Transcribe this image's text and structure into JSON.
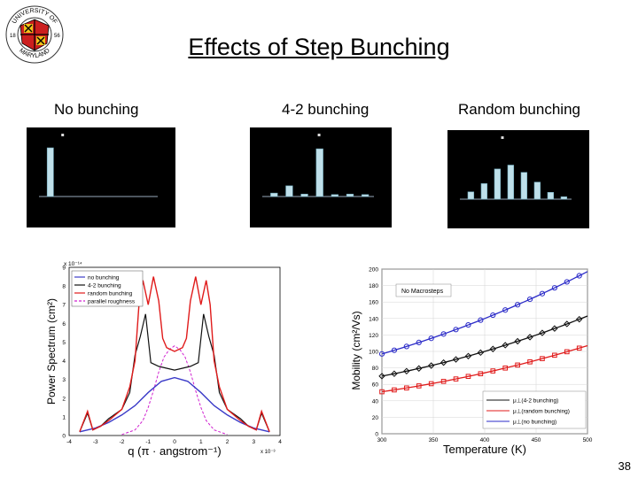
{
  "slide": {
    "title": "Effects of Step Bunching",
    "number": "38"
  },
  "logo": {
    "top_text": "UNIVERSITY OF",
    "bottom_text": "MARYLAND",
    "year_left": "18",
    "year_right": "56"
  },
  "panels": [
    {
      "caption": "No bunching",
      "bars": [
        1.0,
        0,
        0,
        0,
        0,
        0,
        0,
        0
      ]
    },
    {
      "caption": "4-2 bunching",
      "bars": [
        0.07,
        0.22,
        0.05,
        0.98,
        0.04,
        0.05,
        0.04
      ]
    },
    {
      "caption": "Random bunching",
      "bars": [
        0.15,
        0.32,
        0.62,
        0.7,
        0.55,
        0.35,
        0.14,
        0.05
      ]
    }
  ],
  "colors": {
    "no_bunching": "#3b3bc8",
    "bunching_42": "#111111",
    "random_bunching": "#e01b1b",
    "parallel_roughness": "#d020d0"
  },
  "chart_data": [
    {
      "type": "line",
      "title": "",
      "xlabel": "q (π · angstrom⁻¹)",
      "x_multiplier": "x 10⁻³",
      "ylabel": "Power Spectrum (cm²)",
      "y_multiplier": "x 10⁻¹⁴",
      "xlim": [
        -4,
        4
      ],
      "ylim": [
        0,
        9
      ],
      "xticks": [
        "-4",
        "-3",
        "-2",
        "-1",
        "0",
        "1",
        "2",
        "3",
        "4"
      ],
      "yticks": [
        "0",
        "1",
        "2",
        "3",
        "4",
        "5",
        "6",
        "7",
        "8",
        "9"
      ],
      "legend": "top-left",
      "series": [
        {
          "name": "no bunching",
          "x": [
            -3.6,
            -3.0,
            -2.5,
            -2.0,
            -1.5,
            -1.0,
            -0.5,
            0,
            0.5,
            1.0,
            1.5,
            2.0,
            2.5,
            3.0,
            3.6
          ],
          "y": [
            0.2,
            0.4,
            0.7,
            1.1,
            1.6,
            2.3,
            2.9,
            3.1,
            2.9,
            2.3,
            1.6,
            1.1,
            0.7,
            0.4,
            0.2
          ]
        },
        {
          "name": "4-2 bunching",
          "x": [
            -3.6,
            -3.3,
            -3.1,
            -2.8,
            -2.5,
            -2.0,
            -1.7,
            -1.5,
            -1.3,
            -1.1,
            -0.9,
            -0.6,
            -0.3,
            0,
            0.3,
            0.6,
            0.9,
            1.1,
            1.3,
            1.5,
            1.7,
            2.0,
            2.5,
            2.8,
            3.1,
            3.3,
            3.6
          ],
          "y": [
            0.2,
            1.2,
            0.3,
            0.5,
            0.9,
            1.4,
            2.3,
            4.3,
            5.3,
            6.5,
            3.9,
            3.7,
            3.6,
            3.5,
            3.6,
            3.7,
            3.9,
            6.5,
            5.3,
            4.3,
            2.3,
            1.4,
            0.9,
            0.5,
            0.3,
            1.2,
            0.2
          ]
        },
        {
          "name": "random bunching",
          "x": [
            -3.6,
            -3.3,
            -3.1,
            -2.8,
            -2.5,
            -2.0,
            -1.7,
            -1.5,
            -1.35,
            -1.2,
            -1.0,
            -0.8,
            -0.6,
            -0.45,
            -0.3,
            0,
            0.3,
            0.45,
            0.6,
            0.8,
            1.0,
            1.2,
            1.35,
            1.5,
            1.7,
            2.0,
            2.5,
            2.8,
            3.1,
            3.3,
            3.6
          ],
          "y": [
            0.2,
            1.3,
            0.3,
            0.5,
            0.8,
            1.4,
            2.6,
            4.0,
            7.0,
            8.3,
            7.0,
            8.5,
            7.2,
            5.2,
            4.7,
            4.5,
            4.7,
            5.2,
            7.2,
            8.5,
            7.0,
            8.3,
            7.0,
            4.0,
            2.6,
            1.4,
            0.8,
            0.5,
            0.3,
            1.3,
            0.2
          ]
        },
        {
          "name": "parallel roughness",
          "x": [
            -2.0,
            -1.5,
            -1.2,
            -1.0,
            -0.8,
            -0.6,
            -0.4,
            -0.2,
            0,
            0.2,
            0.4,
            0.6,
            0.8,
            1.0,
            1.2,
            1.5,
            2.0
          ],
          "y": [
            0.05,
            0.3,
            0.8,
            1.5,
            2.4,
            3.4,
            4.2,
            4.6,
            4.8,
            4.6,
            4.2,
            3.4,
            2.4,
            1.5,
            0.8,
            0.3,
            0.05
          ]
        }
      ]
    },
    {
      "type": "line",
      "title": "",
      "annotation": "No Macrosteps",
      "xlabel": "Temperature (K)",
      "ylabel": "Mobility (cm²/Vs)",
      "xlim": [
        300,
        500
      ],
      "ylim": [
        0,
        200
      ],
      "xticks": [
        "300",
        "350",
        "400",
        "450",
        "500"
      ],
      "yticks": [
        "0",
        "20",
        "40",
        "60",
        "80",
        "100",
        "120",
        "140",
        "160",
        "180",
        "200"
      ],
      "legend": "bottom-right",
      "series": [
        {
          "name": "μ⊥(4-2 bunching)",
          "x": [
            300,
            400,
            500
          ],
          "y": [
            70,
            100,
            143
          ]
        },
        {
          "name": "μ⊥(random bunching)",
          "x": [
            300,
            400,
            500
          ],
          "y": [
            51,
            74,
            107
          ]
        },
        {
          "name": "μ⊥(no bunching)",
          "x": [
            300,
            400,
            500
          ],
          "y": [
            97,
            140,
            197
          ]
        }
      ]
    }
  ]
}
